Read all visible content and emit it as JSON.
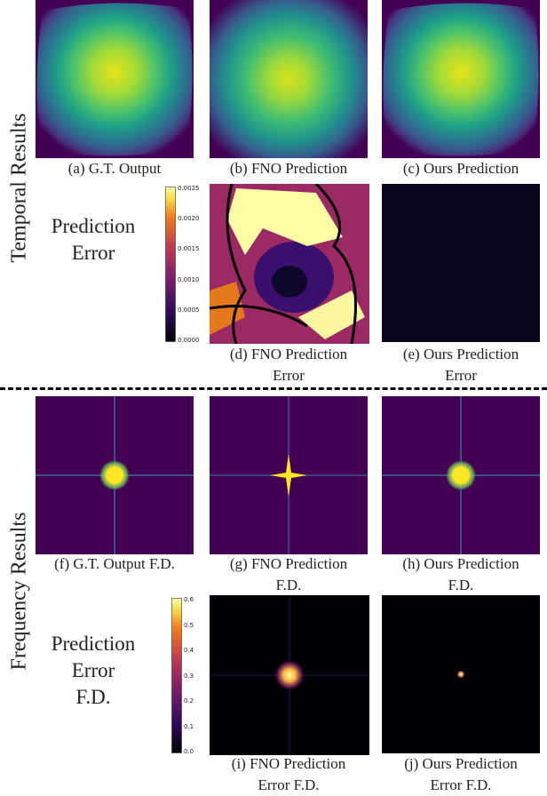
{
  "side_labels": [
    "Temporal Results",
    "Frequency Results"
  ],
  "row_labels": [
    [
      "Prediction",
      "Error"
    ],
    [
      "Prediction",
      "Error",
      "F.D."
    ]
  ],
  "captions": [
    [
      "(a) G.T. Output"
    ],
    [
      "(b) FNO Prediction"
    ],
    [
      "(c) Ours Prediction"
    ],
    [
      "(d) FNO Prediction",
      "Error"
    ],
    [
      "(e) Ours Prediction",
      "Error"
    ],
    [
      "(f) G.T. Output F.D."
    ],
    [
      "(g) FNO Prediction",
      "F.D."
    ],
    [
      "(h) Ours Prediction",
      "F.D."
    ],
    [
      "(i) FNO Prediction",
      "Error F.D."
    ],
    [
      "(j) Ours Prediction",
      "Error F.D."
    ]
  ],
  "colorbars": [
    [
      "0.0000",
      "0.0005",
      "0.0010",
      "0.0015",
      "0.0020",
      "0.0025"
    ],
    [
      "0.0",
      "0.1",
      "0.2",
      "0.3",
      "0.4",
      "0.5",
      "0.6"
    ]
  ]
}
